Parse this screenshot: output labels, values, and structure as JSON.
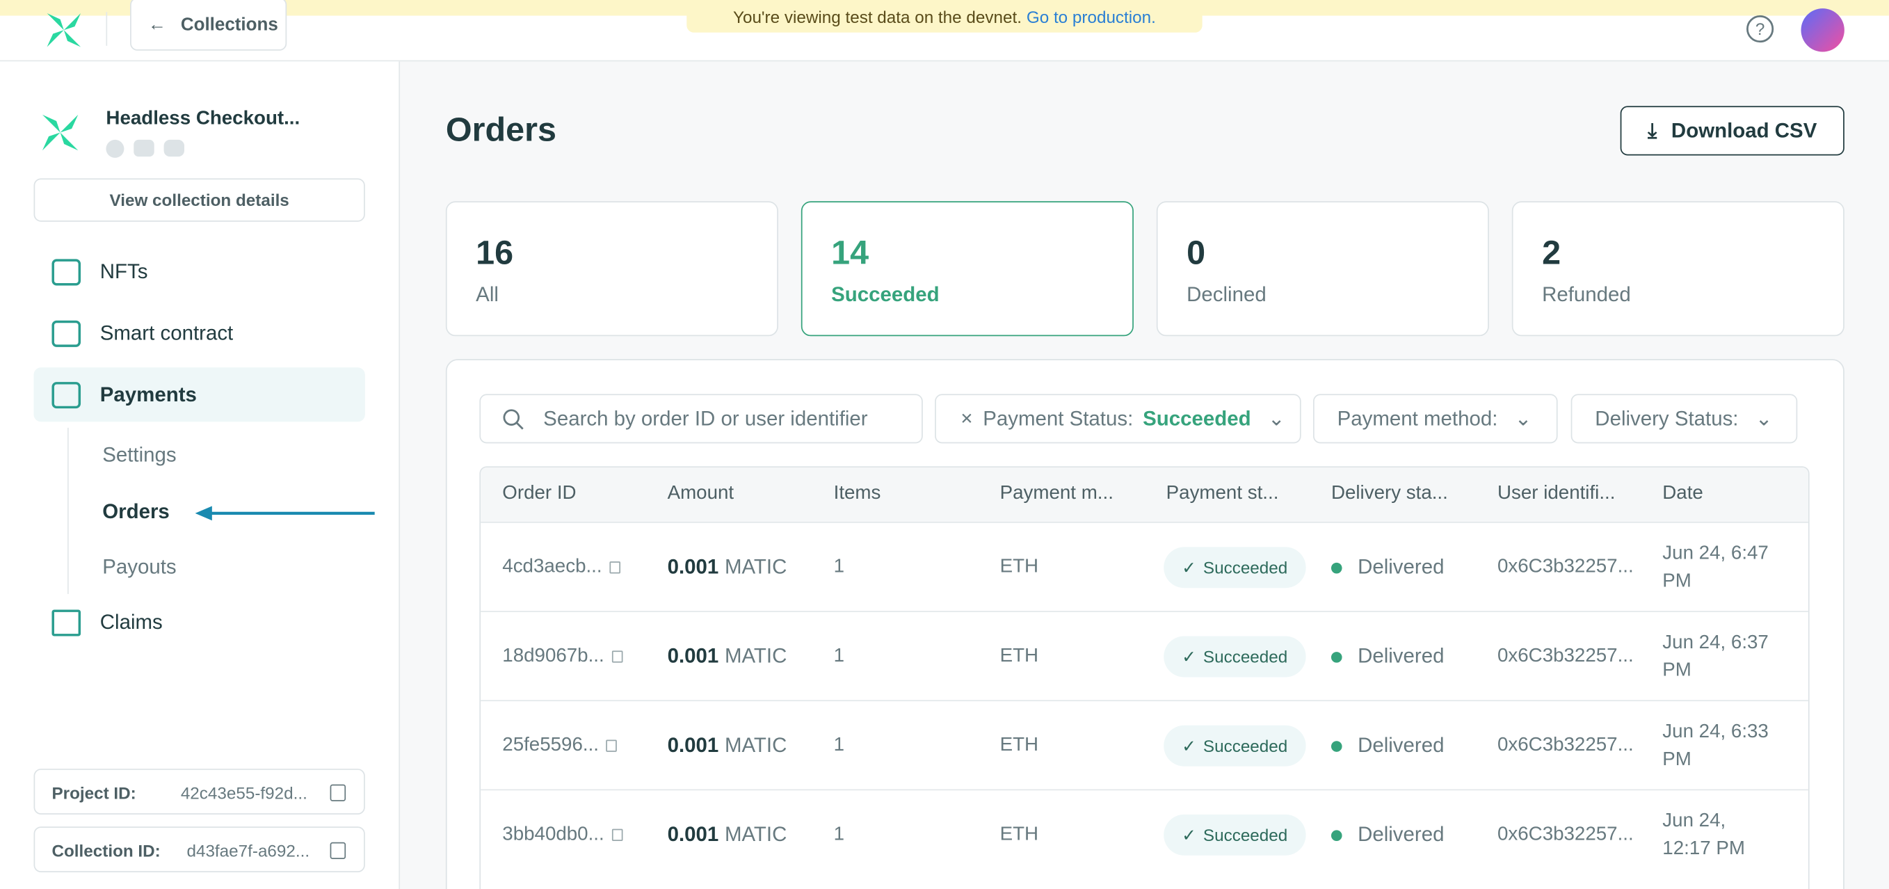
{
  "banner": {
    "text": "You're viewing test data on the devnet.",
    "link": "Go to production."
  },
  "topbar": {
    "back": "Collections"
  },
  "sidebar": {
    "collection_name": "Headless Checkout...",
    "view_details": "View collection details",
    "nav": [
      "NFTs",
      "Smart contract",
      "Payments",
      "Claims"
    ],
    "subnav": [
      "Settings",
      "Orders",
      "Payouts"
    ],
    "ids": [
      {
        "label": "Project ID:",
        "value": "42c43e55-f92d..."
      },
      {
        "label": "Collection ID:",
        "value": "d43fae7f-a692..."
      }
    ]
  },
  "main": {
    "title": "Orders",
    "download": "Download CSV",
    "stats": [
      {
        "count": 16,
        "label": "All"
      },
      {
        "count": 14,
        "label": "Succeeded"
      },
      {
        "count": 0,
        "label": "Declined"
      },
      {
        "count": 2,
        "label": "Refunded"
      }
    ],
    "search_placeholder": "Search by order ID or user identifier",
    "filters": [
      {
        "label": "Payment Status:",
        "value": "Succeeded"
      },
      {
        "label": "Payment method:"
      },
      {
        "label": "Delivery Status:"
      }
    ],
    "table": {
      "headers": [
        "Order ID",
        "Amount",
        "Items",
        "Payment m...",
        "Payment st...",
        "Delivery sta...",
        "User identifi...",
        "Date"
      ],
      "rows": [
        {
          "order_id": "4cd3aecb...",
          "amount": "0.001",
          "unit": "MATIC",
          "items": "1",
          "method": "ETH",
          "status": "Succeeded",
          "delivery": "Delivered",
          "user": "0x6C3b32257...",
          "date": "Jun 24, 6:47 PM"
        },
        {
          "order_id": "18d9067b...",
          "amount": "0.001",
          "unit": "MATIC",
          "items": "1",
          "method": "ETH",
          "status": "Succeeded",
          "delivery": "Delivered",
          "user": "0x6C3b32257...",
          "date": "Jun 24, 6:37 PM"
        },
        {
          "order_id": "25fe5596...",
          "amount": "0.001",
          "unit": "MATIC",
          "items": "1",
          "method": "ETH",
          "status": "Succeeded",
          "delivery": "Delivered",
          "user": "0x6C3b32257...",
          "date": "Jun 24, 6:33 PM"
        },
        {
          "order_id": "3bb40db0...",
          "amount": "0.001",
          "unit": "MATIC",
          "items": "1",
          "method": "ETH",
          "status": "Succeeded",
          "delivery": "Delivered",
          "user": "0x6C3b32257...",
          "date": "Jun 24, 12:17 PM"
        }
      ]
    }
  }
}
